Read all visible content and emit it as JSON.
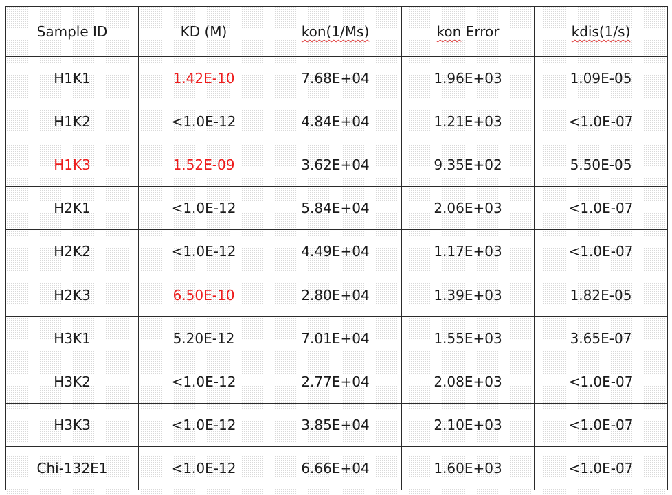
{
  "colors": {
    "highlight": "#ee1c1c",
    "text": "#1a1a1a",
    "border": "#2b2b2b"
  },
  "table": {
    "headers": [
      {
        "text": "Sample ID",
        "spell_flag": false
      },
      {
        "text": "KD (M)",
        "spell_flag": false
      },
      {
        "text": "kon(1/Ms)",
        "spell_flag": true
      },
      {
        "text": "kon Error",
        "spell_flag": true,
        "flag_part": "kon",
        "rest": " Error"
      },
      {
        "text": "kdis(1/s)",
        "spell_flag": true
      }
    ],
    "rows": [
      {
        "sample": "H1K1",
        "kd": "1.42E-10",
        "kon": "7.68E+04",
        "kon_error": "1.96E+03",
        "kdis": "1.09E-05",
        "sample_red": false,
        "kd_red": true
      },
      {
        "sample": "H1K2",
        "kd": "<1.0E-12",
        "kon": "4.84E+04",
        "kon_error": "1.21E+03",
        "kdis": "<1.0E-07",
        "sample_red": false,
        "kd_red": false
      },
      {
        "sample": "H1K3",
        "kd": "1.52E-09",
        "kon": "3.62E+04",
        "kon_error": "9.35E+02",
        "kdis": "5.50E-05",
        "sample_red": true,
        "kd_red": true
      },
      {
        "sample": "H2K1",
        "kd": "<1.0E-12",
        "kon": "5.84E+04",
        "kon_error": "2.06E+03",
        "kdis": "<1.0E-07",
        "sample_red": false,
        "kd_red": false
      },
      {
        "sample": "H2K2",
        "kd": "<1.0E-12",
        "kon": "4.49E+04",
        "kon_error": "1.17E+03",
        "kdis": "<1.0E-07",
        "sample_red": false,
        "kd_red": false
      },
      {
        "sample": "H2K3",
        "kd": "6.50E-10",
        "kon": "2.80E+04",
        "kon_error": "1.39E+03",
        "kdis": "1.82E-05",
        "sample_red": false,
        "kd_red": true
      },
      {
        "sample": "H3K1",
        "kd": "5.20E-12",
        "kon": "7.01E+04",
        "kon_error": "1.55E+03",
        "kdis": "3.65E-07",
        "sample_red": false,
        "kd_red": false
      },
      {
        "sample": "H3K2",
        "kd": "<1.0E-12",
        "kon": "2.77E+04",
        "kon_error": "2.08E+03",
        "kdis": "<1.0E-07",
        "sample_red": false,
        "kd_red": false
      },
      {
        "sample": "H3K3",
        "kd": "<1.0E-12",
        "kon": "3.85E+04",
        "kon_error": "2.10E+03",
        "kdis": "<1.0E-07",
        "sample_red": false,
        "kd_red": false
      },
      {
        "sample": "Chi-132E1",
        "kd": "<1.0E-12",
        "kon": "6.66E+04",
        "kon_error": "1.60E+03",
        "kdis": "<1.0E-07",
        "sample_red": false,
        "kd_red": false
      }
    ]
  }
}
